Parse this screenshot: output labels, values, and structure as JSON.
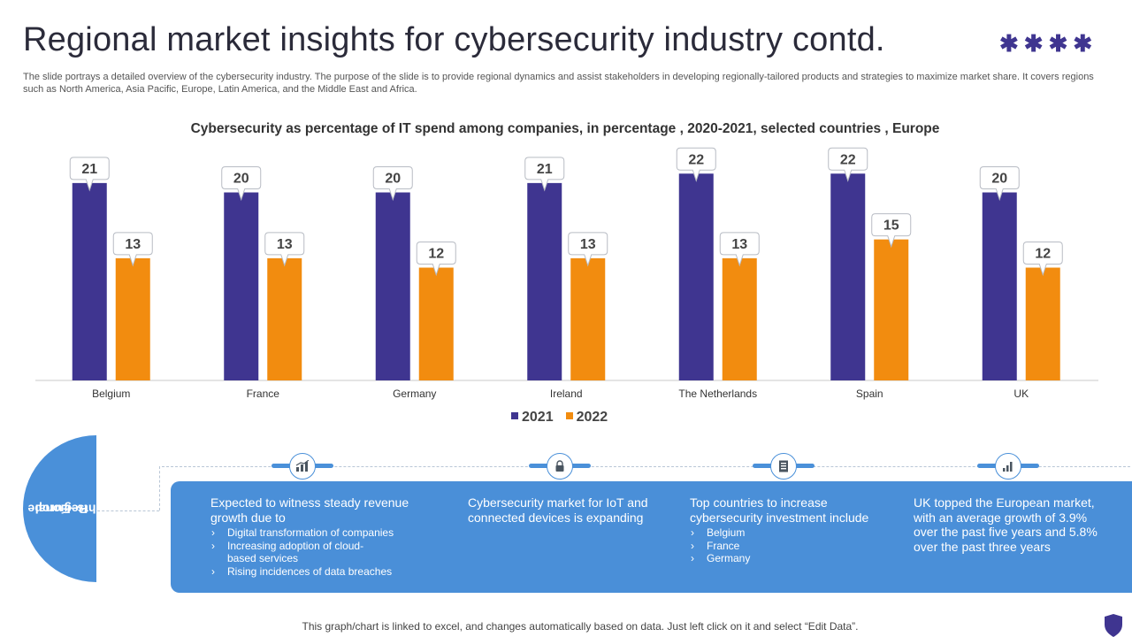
{
  "title": "Regional market insights for cybersecurity industry contd.",
  "decoration": "✱✱✱✱",
  "description": "The slide portrays a detailed overview of the cybersecurity industry. The purpose of the slide is to provide regional dynamics and assist stakeholders in developing regionally-tailored products and strategies to maximize market share. It covers regions such as North America, Asia Pacific, Europe, Latin America, and the Middle East and Africa.",
  "chart_data": {
    "type": "bar",
    "title": "Cybersecurity  as percentage of IT spend among companies, in percentage , 2020-2021, selected countries  , Europe",
    "categories": [
      "Belgium",
      "France",
      "Germany",
      "Ireland",
      "The Netherlands",
      "Spain",
      "UK"
    ],
    "series": [
      {
        "name": "2021",
        "color": "#3f3590",
        "values": [
          21,
          20,
          20,
          21,
          22,
          22,
          20
        ]
      },
      {
        "name": "2022",
        "color": "#f28c0f",
        "values": [
          13,
          13,
          12,
          13,
          13,
          15,
          12
        ]
      }
    ],
    "ylim": [
      0,
      24
    ],
    "grid": false,
    "legend": "bottom-center",
    "xlabel": "",
    "ylabel": ""
  },
  "side_label": {
    "line1": "Regional",
    "line2": "Insights–Europe"
  },
  "insights": [
    {
      "icon": "growth-chart-icon",
      "heading": "Expected to witness steady revenue growth due to",
      "bullets": [
        "Digital transformation of companies",
        "Increasing adoption of cloud-based services",
        "Rising incidences of data breaches"
      ]
    },
    {
      "icon": "lock-icon",
      "heading": "Cybersecurity market for IoT and connected devices  is expanding",
      "bullets": []
    },
    {
      "icon": "document-icon",
      "heading": "Top countries to increase cybersecurity investment include",
      "bullets": [
        "Belgium",
        "France",
        "Germany"
      ]
    },
    {
      "icon": "bar-chart-icon",
      "heading": "UK topped the European market, with an average growth of 3.9% over the past five years and 5.8% over the past three years",
      "bullets": []
    }
  ],
  "footer": "This graph/chart is linked to excel,  and changes automatically based on data. Just left click on it and select “Edit Data”."
}
